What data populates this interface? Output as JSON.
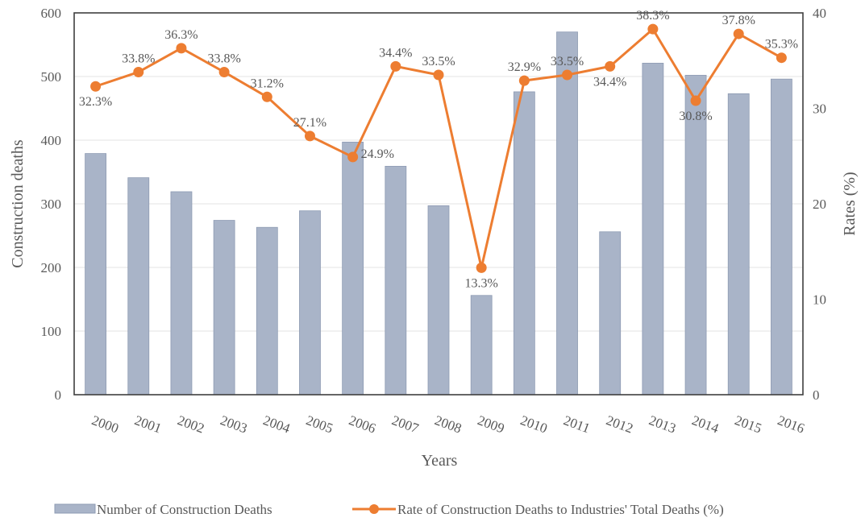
{
  "chart_data": {
    "type": "bar+line",
    "categories": [
      "2000",
      "2001",
      "2002",
      "2003",
      "2004",
      "2005",
      "2006",
      "2007",
      "2008",
      "2009",
      "2010",
      "2011",
      "2012",
      "2013",
      "2014",
      "2015",
      "2016"
    ],
    "series": [
      {
        "name": "Number of Construction Deaths",
        "type": "bar",
        "axis": "left",
        "color": "#a9b4c8",
        "values": [
          379,
          341,
          319,
          274,
          263,
          289,
          397,
          359,
          297,
          156,
          476,
          570,
          256,
          521,
          502,
          473,
          496
        ]
      },
      {
        "name": "Rate of Construction Deaths to Industries' Total Deaths (%)",
        "type": "line",
        "axis": "right",
        "color": "#ed7d31",
        "values": [
          32.3,
          33.8,
          36.3,
          33.8,
          31.2,
          27.1,
          24.9,
          34.4,
          33.5,
          13.3,
          32.9,
          33.5,
          34.4,
          38.3,
          30.8,
          37.8,
          35.3
        ],
        "labels": [
          "32.3%",
          "33.8%",
          "36.3%",
          "33.8%",
          "31.2%",
          "27.1%",
          "24.9%",
          "34.4%",
          "33.5%",
          "13.3%",
          "32.9%",
          "33.5%",
          "34.4%",
          "38.3%",
          "30.8%",
          "37.8%",
          "35.3%"
        ]
      }
    ],
    "xlabel": "Years",
    "ylabel": "Construction deaths",
    "y2label": "Rates (%)",
    "ylim": [
      0,
      600
    ],
    "y2lim": [
      0,
      40
    ],
    "yticks": [
      "0",
      "100",
      "200",
      "300",
      "400",
      "500",
      "600"
    ],
    "y2ticks": [
      "0",
      "10",
      "20",
      "30",
      "40"
    ],
    "grid": true,
    "legend_position": "bottom"
  }
}
